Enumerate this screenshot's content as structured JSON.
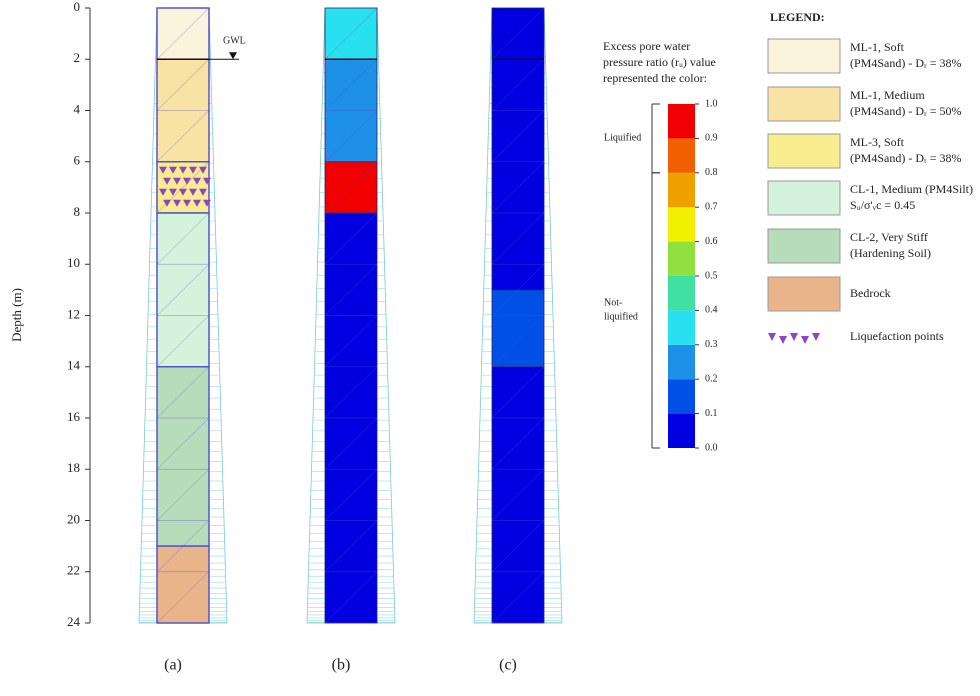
{
  "chart_data": {
    "type": "soil-profile",
    "y_label": "Depth (m)",
    "ylim": [
      0,
      24
    ],
    "yticks": [
      0,
      2,
      4,
      6,
      8,
      10,
      12,
      14,
      16,
      18,
      20,
      22,
      24
    ],
    "gwl": {
      "label": "GWL",
      "depth": 2
    },
    "panels": [
      {
        "label": "(a)",
        "layers": [
          {
            "top": 0,
            "bottom": 2,
            "color": "#fbf3dc"
          },
          {
            "top": 2,
            "bottom": 6,
            "color": "#f8e2a4"
          },
          {
            "top": 6,
            "bottom": 8,
            "color": "#f7ec8e",
            "liquefaction": true
          },
          {
            "top": 8,
            "bottom": 14,
            "color": "#d4f3dc"
          },
          {
            "top": 14,
            "bottom": 21,
            "color": "#b7dcba"
          },
          {
            "top": 21,
            "bottom": 24,
            "color": "#e9b48a"
          }
        ]
      },
      {
        "label": "(b)",
        "layers": [
          {
            "top": 0,
            "bottom": 2,
            "ru": 0.35
          },
          {
            "top": 2,
            "bottom": 6,
            "ru": 0.25
          },
          {
            "top": 6,
            "bottom": 8,
            "ru": 0.95
          },
          {
            "top": 8,
            "bottom": 24,
            "ru": 0.05
          }
        ]
      },
      {
        "label": "(c)",
        "layers": [
          {
            "top": 0,
            "bottom": 11,
            "ru": 0.05
          },
          {
            "top": 11,
            "bottom": 14,
            "ru": 0.15
          },
          {
            "top": 14,
            "bottom": 24,
            "ru": 0.05
          }
        ]
      }
    ],
    "colorbar": {
      "title": [
        "Excess pore water",
        "pressure ratio (rᵤ) value",
        "represented the color:"
      ],
      "lim": [
        0,
        1
      ],
      "ticks": [
        {
          "value": 0,
          "label": "0.0"
        },
        0.1,
        0.2,
        0.3,
        0.4,
        0.5,
        0.6,
        0.7,
        0.8,
        0.9,
        {
          "value": 1,
          "label": "1.0"
        }
      ],
      "colors": [
        "#0000e0",
        "#0050e8",
        "#1e90e8",
        "#28e0f0",
        "#40e0a0",
        "#90e040",
        "#f0f000",
        "#f0a000",
        "#f06000",
        "#f00000"
      ],
      "zones": [
        {
          "label": [
            "Liquified"
          ],
          "from": 0.8,
          "to": 1
        },
        {
          "label": [
            "Not-",
            "liquified"
          ],
          "from": 0,
          "to": 0.8
        }
      ]
    },
    "legend": {
      "title": "LEGEND:",
      "items": [
        {
          "lines": [
            "ML-1, Soft",
            "(PM4Sand) - Dᵣ = 38%"
          ],
          "color": "#fbf3dc"
        },
        {
          "lines": [
            "ML-1, Medium",
            "(PM4Sand) - Dᵣ = 50%"
          ],
          "color": "#f8e2a4"
        },
        {
          "lines": [
            "ML-3, Soft",
            "(PM4Sand) - Dᵣ = 38%"
          ],
          "color": "#f7ec8e"
        },
        {
          "lines": [
            "CL-1, Medium (PM4Silt)",
            "Sᵤ/σ'ᵥc = 0.45"
          ],
          "color": "#d4f3dc"
        },
        {
          "lines": [
            "CL-2, Very Stiff",
            "(Hardening Soil)"
          ],
          "color": "#b7dcba"
        },
        {
          "lines": [
            "Bedrock"
          ],
          "color": "#e9b48a"
        },
        {
          "lines": [
            "Liquefaction points"
          ],
          "marker": "#8e44c8"
        }
      ]
    }
  }
}
